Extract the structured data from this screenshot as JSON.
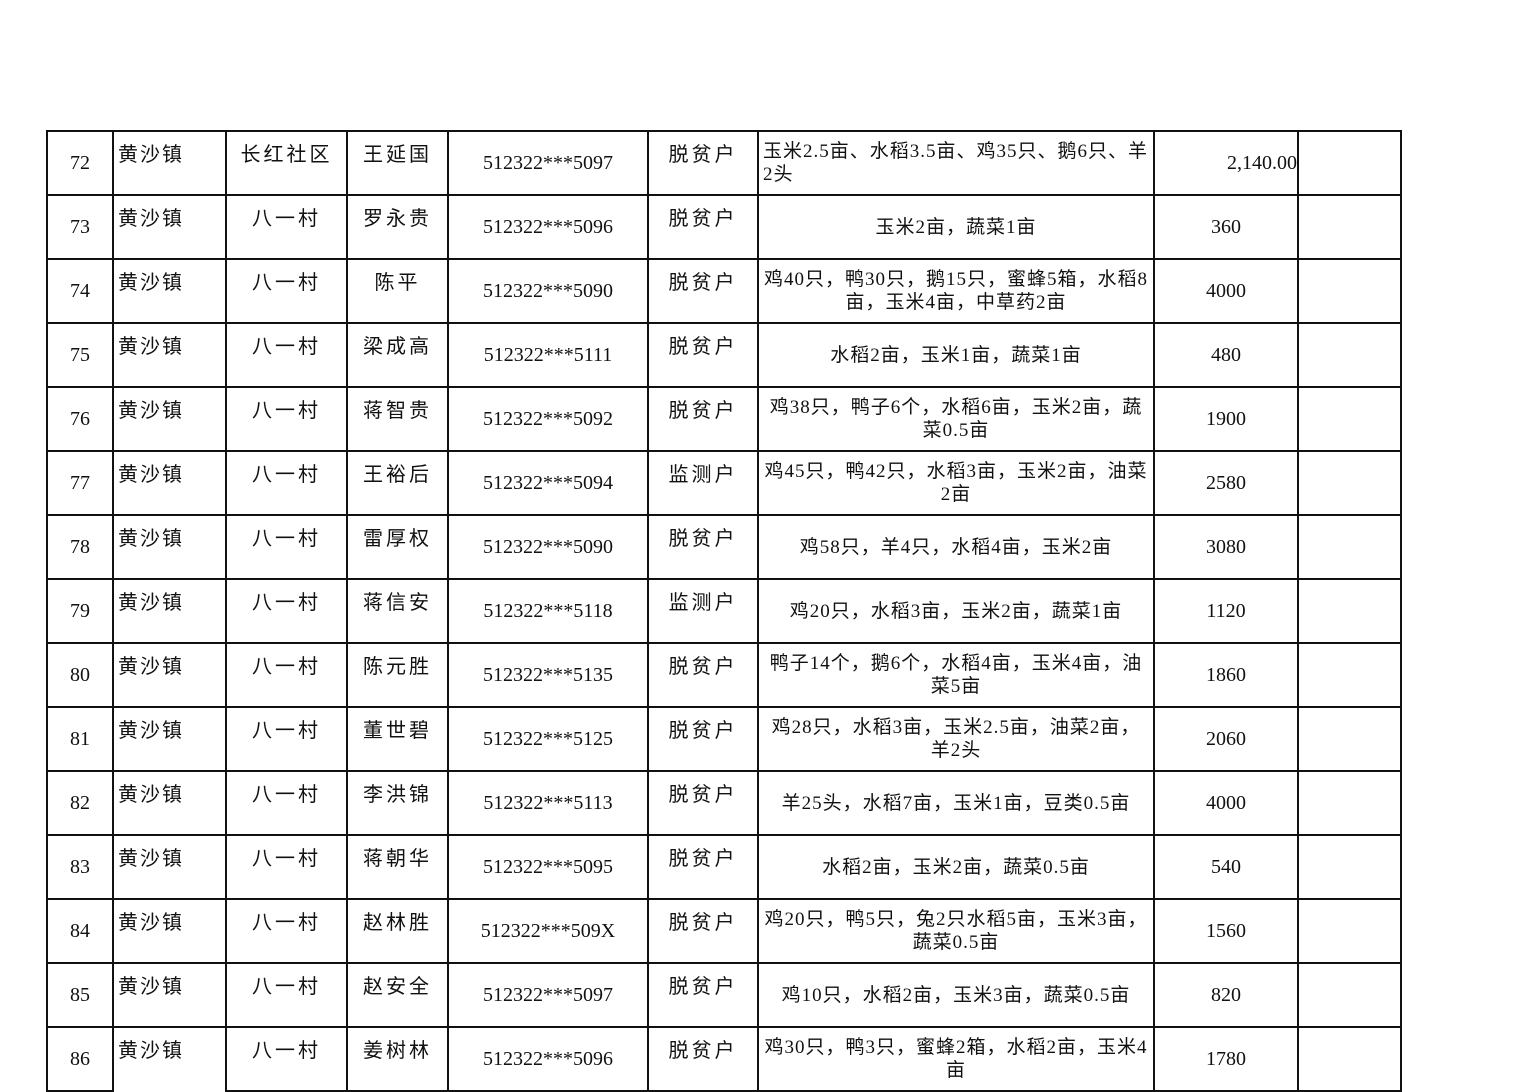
{
  "rows": [
    {
      "no": "72",
      "town": "黄沙镇",
      "village": "长红社区",
      "name": "王延国",
      "id": "512322***5097",
      "type": "脱贫户",
      "desc": "玉米2.5亩、水稻3.5亩、鸡35只、鹅6只、羊2头",
      "amount": "2,140.00",
      "note": ""
    },
    {
      "no": "73",
      "town": "黄沙镇",
      "village": "八一村",
      "name": "罗永贵",
      "id": "512322***5096",
      "type": "脱贫户",
      "desc": "玉米2亩，蔬菜1亩",
      "amount": "360",
      "note": ""
    },
    {
      "no": "74",
      "town": "黄沙镇",
      "village": "八一村",
      "name": "陈平",
      "id": "512322***5090",
      "type": "脱贫户",
      "desc": "鸡40只，鸭30只，鹅15只，蜜蜂5箱，水稻8亩，玉米4亩，中草药2亩",
      "amount": "4000",
      "note": ""
    },
    {
      "no": "75",
      "town": "黄沙镇",
      "village": "八一村",
      "name": "梁成高",
      "id": "512322***5111",
      "type": "脱贫户",
      "desc": "水稻2亩，玉米1亩，蔬菜1亩",
      "amount": "480",
      "note": ""
    },
    {
      "no": "76",
      "town": "黄沙镇",
      "village": "八一村",
      "name": "蒋智贵",
      "id": "512322***5092",
      "type": "脱贫户",
      "desc": "鸡38只，鸭子6个，水稻6亩，玉米2亩，蔬菜0.5亩",
      "amount": "1900",
      "note": ""
    },
    {
      "no": "77",
      "town": "黄沙镇",
      "village": "八一村",
      "name": "王裕后",
      "id": "512322***5094",
      "type": "监测户",
      "desc": "鸡45只，鸭42只，水稻3亩，玉米2亩，油菜2亩",
      "amount": "2580",
      "note": ""
    },
    {
      "no": "78",
      "town": "黄沙镇",
      "village": "八一村",
      "name": "雷厚权",
      "id": "512322***5090",
      "type": "脱贫户",
      "desc": "鸡58只，羊4只，水稻4亩，玉米2亩",
      "amount": "3080",
      "note": ""
    },
    {
      "no": "79",
      "town": "黄沙镇",
      "village": "八一村",
      "name": "蒋信安",
      "id": "512322***5118",
      "type": "监测户",
      "desc": "鸡20只，水稻3亩，玉米2亩，蔬菜1亩",
      "amount": "1120",
      "note": ""
    },
    {
      "no": "80",
      "town": "黄沙镇",
      "village": "八一村",
      "name": "陈元胜",
      "id": "512322***5135",
      "type": "脱贫户",
      "desc": "鸭子14个，鹅6个，水稻4亩，玉米4亩，油菜5亩",
      "amount": "1860",
      "note": ""
    },
    {
      "no": "81",
      "town": "黄沙镇",
      "village": "八一村",
      "name": "董世碧",
      "id": "512322***5125",
      "type": "脱贫户",
      "desc": "鸡28只，水稻3亩，玉米2.5亩，油菜2亩，羊2头",
      "amount": "2060",
      "note": ""
    },
    {
      "no": "82",
      "town": "黄沙镇",
      "village": "八一村",
      "name": "李洪锦",
      "id": "512322***5113",
      "type": "脱贫户",
      "desc": "羊25头，水稻7亩，玉米1亩，豆类0.5亩",
      "amount": "4000",
      "note": ""
    },
    {
      "no": "83",
      "town": "黄沙镇",
      "village": "八一村",
      "name": "蒋朝华",
      "id": "512322***5095",
      "type": "脱贫户",
      "desc": "水稻2亩，玉米2亩，蔬菜0.5亩",
      "amount": "540",
      "note": ""
    },
    {
      "no": "84",
      "town": "黄沙镇",
      "village": "八一村",
      "name": "赵林胜",
      "id": "512322***509X",
      "type": "脱贫户",
      "desc": "鸡20只，鸭5只，兔2只水稻5亩，玉米3亩，蔬菜0.5亩",
      "amount": "1560",
      "note": ""
    },
    {
      "no": "85",
      "town": "黄沙镇",
      "village": "八一村",
      "name": "赵安全",
      "id": "512322***5097",
      "type": "脱贫户",
      "desc": "鸡10只，水稻2亩，玉米3亩，蔬菜0.5亩",
      "amount": "820",
      "note": ""
    },
    {
      "no": "86",
      "town": "黄沙镇",
      "village": "八一村",
      "name": "姜树林",
      "id": "512322***5096",
      "type": "脱贫户",
      "desc": "鸡30只，鸭3只，蜜蜂2箱，水稻2亩，玉米4亩",
      "amount": "1780",
      "note": ""
    }
  ]
}
